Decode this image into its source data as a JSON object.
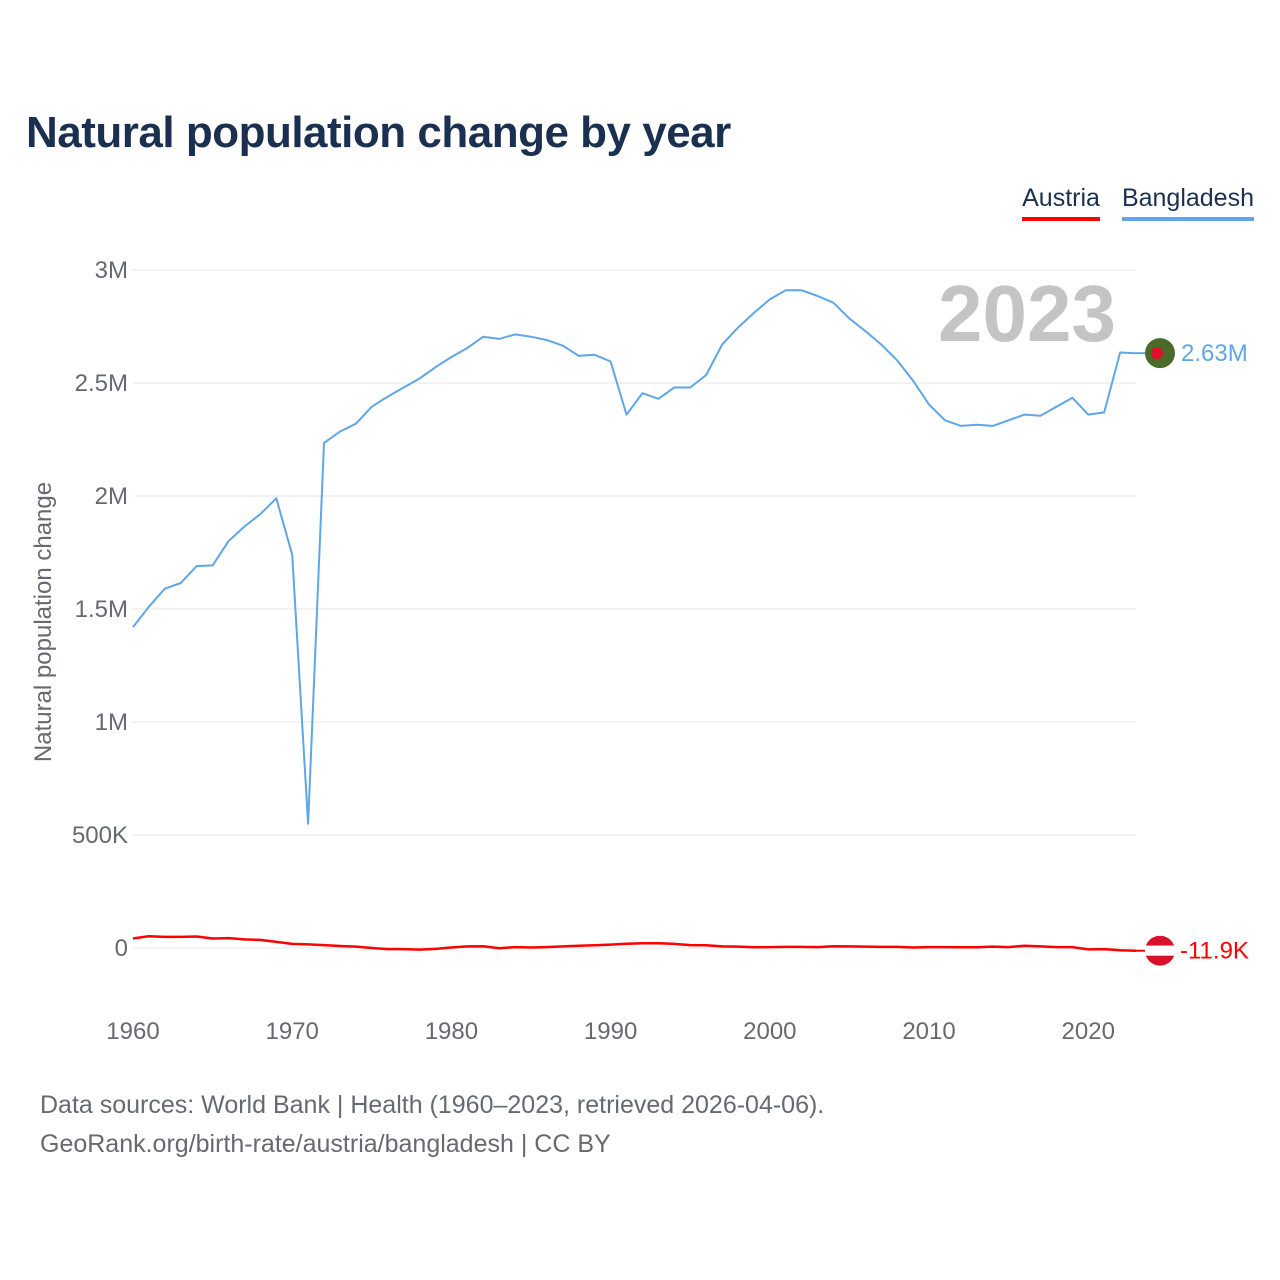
{
  "title": "Natural population change by year",
  "legend": [
    {
      "label": "Austria",
      "color": "#ff0000"
    },
    {
      "label": "Bangladesh",
      "color": "#5fa6e6"
    }
  ],
  "footer": {
    "line1": "Data sources: World Bank | Health (1960–2023, retrieved 2026-04-06).",
    "line2": "GeoRank.org/birth-rate/austria/bangladesh | CC BY"
  },
  "chart_data": {
    "type": "line",
    "title": "Natural population change by year",
    "xlabel": "",
    "ylabel": "Natural population change",
    "xlim": [
      1960,
      2023
    ],
    "ylim": [
      -120000,
      3000000
    ],
    "year_label": "2023",
    "y_ticks": [
      {
        "value": 0,
        "label": "0"
      },
      {
        "value": 500000,
        "label": "500K"
      },
      {
        "value": 1000000,
        "label": "1M"
      },
      {
        "value": 1500000,
        "label": "1.5M"
      },
      {
        "value": 2000000,
        "label": "2M"
      },
      {
        "value": 2500000,
        "label": "2.5M"
      },
      {
        "value": 3000000,
        "label": "3M"
      }
    ],
    "x_ticks": [
      {
        "value": 1960,
        "label": "1960"
      },
      {
        "value": 1970,
        "label": "1970"
      },
      {
        "value": 1980,
        "label": "1980"
      },
      {
        "value": 1990,
        "label": "1990"
      },
      {
        "value": 2000,
        "label": "2000"
      },
      {
        "value": 2010,
        "label": "2010"
      },
      {
        "value": 2020,
        "label": "2020"
      }
    ],
    "x": [
      1960,
      1961,
      1962,
      1963,
      1964,
      1965,
      1966,
      1967,
      1968,
      1969,
      1970,
      1971,
      1972,
      1973,
      1974,
      1975,
      1976,
      1977,
      1978,
      1979,
      1980,
      1981,
      1982,
      1983,
      1984,
      1985,
      1986,
      1987,
      1988,
      1989,
      1990,
      1991,
      1992,
      1993,
      1994,
      1995,
      1996,
      1997,
      1998,
      1999,
      2000,
      2001,
      2002,
      2003,
      2004,
      2005,
      2006,
      2007,
      2008,
      2009,
      2010,
      2011,
      2012,
      2013,
      2014,
      2015,
      2016,
      2017,
      2018,
      2019,
      2020,
      2021,
      2022,
      2023
    ],
    "series": [
      {
        "name": "Bangladesh",
        "color": "#5fa6e6",
        "end_label": "2.63M",
        "values": [
          1420000,
          1510000,
          1590000,
          1615000,
          1690000,
          1693000,
          1800000,
          1865000,
          1920000,
          1990000,
          1740000,
          550000,
          2235000,
          2285000,
          2320000,
          2395000,
          2440000,
          2480000,
          2520000,
          2570000,
          2615000,
          2655000,
          2705000,
          2695000,
          2715000,
          2705000,
          2690000,
          2665000,
          2620000,
          2625000,
          2595000,
          2360000,
          2455000,
          2430000,
          2480000,
          2480000,
          2535000,
          2670000,
          2745000,
          2810000,
          2870000,
          2910000,
          2910000,
          2885000,
          2855000,
          2785000,
          2730000,
          2670000,
          2600000,
          2510000,
          2405000,
          2335000,
          2310000,
          2315000,
          2310000,
          2335000,
          2360000,
          2355000,
          2395000,
          2435000,
          2360000,
          2370000,
          2635000,
          2632000
        ]
      },
      {
        "name": "Austria",
        "color": "#ff0000",
        "end_label": "-11.9K",
        "values": [
          42000,
          52000,
          49000,
          49000,
          51000,
          42000,
          44000,
          38000,
          36000,
          27000,
          18000,
          16000,
          13000,
          9000,
          6000,
          0,
          -5000,
          -5000,
          -7000,
          -4000,
          2000,
          7000,
          8000,
          -1000,
          4000,
          2000,
          4000,
          7000,
          10000,
          12000,
          15000,
          19000,
          21000,
          21000,
          18000,
          13000,
          12000,
          7000,
          6000,
          3000,
          4000,
          5000,
          5000,
          4000,
          8000,
          7000,
          6000,
          5000,
          5000,
          2000,
          4000,
          4000,
          3000,
          3000,
          6000,
          4000,
          10000,
          7000,
          4000,
          4000,
          -6000,
          -5000,
          -10000,
          -11900
        ]
      }
    ]
  }
}
